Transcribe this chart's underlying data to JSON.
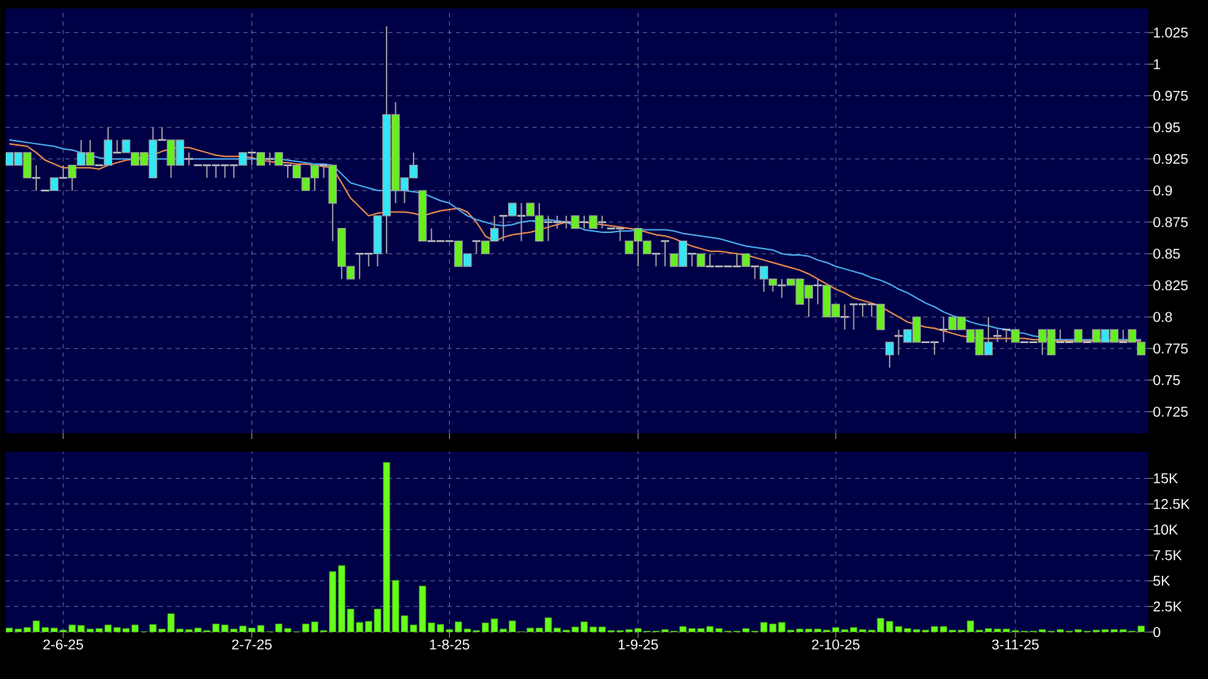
{
  "chart_data": [
    {
      "type": "candlestick",
      "tick_labels": "y",
      "grid": true,
      "categories": [
        null,
        null,
        null,
        null,
        null,
        null,
        null,
        null,
        null,
        null,
        null,
        null,
        null,
        null,
        null,
        null,
        null,
        null,
        null,
        null,
        null,
        null,
        null,
        null,
        null,
        null,
        null,
        null,
        null,
        null,
        null,
        null,
        null,
        null,
        null,
        null,
        null,
        null,
        null,
        null,
        null,
        null,
        null,
        null,
        null,
        null,
        null,
        null,
        null,
        null,
        null,
        null,
        null,
        null,
        null,
        null,
        null,
        null,
        null,
        null,
        null,
        null,
        null,
        null,
        null,
        null,
        null,
        null,
        null,
        null,
        null,
        null,
        null,
        null,
        null,
        null,
        null,
        null,
        null,
        null,
        null,
        null,
        null,
        null,
        null,
        null,
        null,
        null,
        null,
        null,
        null,
        null,
        null,
        null,
        null,
        null,
        null,
        null,
        null,
        null,
        null,
        null,
        null,
        null,
        null,
        null,
        null,
        null,
        null,
        null,
        null,
        null,
        null,
        null,
        null,
        null,
        null,
        null,
        null,
        null,
        null,
        null,
        null,
        null,
        null,
        null,
        null
      ],
      "ohlc": [
        [
          0.92,
          0.93,
          0.92,
          0.93
        ],
        [
          0.92,
          0.93,
          0.92,
          0.93
        ],
        [
          0.93,
          0.93,
          0.91,
          0.91
        ],
        [
          0.91,
          0.92,
          0.9,
          0.91
        ],
        [
          0.9,
          0.9,
          0.9,
          0.9
        ],
        [
          0.9,
          0.91,
          0.9,
          0.91
        ],
        [
          0.91,
          0.92,
          0.91,
          0.91
        ],
        [
          0.92,
          0.92,
          0.9,
          0.91
        ],
        [
          0.92,
          0.94,
          0.92,
          0.93
        ],
        [
          0.93,
          0.94,
          0.92,
          0.92
        ],
        [
          0.92,
          0.92,
          0.92,
          0.92
        ],
        [
          0.92,
          0.95,
          0.92,
          0.94
        ],
        [
          0.93,
          0.94,
          0.93,
          0.93
        ],
        [
          0.93,
          0.94,
          0.93,
          0.94
        ],
        [
          0.93,
          0.93,
          0.92,
          0.92
        ],
        [
          0.93,
          0.93,
          0.92,
          0.92
        ],
        [
          0.91,
          0.95,
          0.91,
          0.94
        ],
        [
          0.94,
          0.95,
          0.94,
          0.94
        ],
        [
          0.94,
          0.94,
          0.91,
          0.92
        ],
        [
          0.92,
          0.94,
          0.92,
          0.94
        ],
        [
          0.925,
          0.93,
          0.92,
          0.925
        ],
        [
          0.92,
          0.92,
          0.92,
          0.92
        ],
        [
          0.92,
          0.92,
          0.91,
          0.92
        ],
        [
          0.92,
          0.92,
          0.91,
          0.92
        ],
        [
          0.92,
          0.92,
          0.91,
          0.92
        ],
        [
          0.92,
          0.92,
          0.91,
          0.92
        ],
        [
          0.92,
          0.93,
          0.92,
          0.93
        ],
        [
          0.93,
          0.93,
          0.92,
          0.93
        ],
        [
          0.93,
          0.93,
          0.92,
          0.92
        ],
        [
          0.925,
          0.93,
          0.92,
          0.925
        ],
        [
          0.93,
          0.93,
          0.92,
          0.92
        ],
        [
          0.92,
          0.92,
          0.91,
          0.92
        ],
        [
          0.92,
          0.92,
          0.91,
          0.91
        ],
        [
          0.91,
          0.91,
          0.9,
          0.9
        ],
        [
          0.92,
          0.92,
          0.9,
          0.91
        ],
        [
          0.92,
          0.92,
          0.91,
          0.92
        ],
        [
          0.92,
          0.92,
          0.86,
          0.89
        ],
        [
          0.87,
          0.87,
          0.83,
          0.84
        ],
        [
          0.84,
          0.84,
          0.83,
          0.83
        ],
        [
          0.85,
          0.85,
          0.83,
          0.85
        ],
        [
          0.85,
          0.85,
          0.84,
          0.85
        ],
        [
          0.85,
          0.88,
          0.84,
          0.88
        ],
        [
          0.88,
          1.03,
          0.85,
          0.96
        ],
        [
          0.96,
          0.97,
          0.89,
          0.9
        ],
        [
          0.9,
          0.91,
          0.89,
          0.91
        ],
        [
          0.91,
          0.93,
          0.91,
          0.92
        ],
        [
          0.9,
          0.9,
          0.86,
          0.86
        ],
        [
          0.86,
          0.87,
          0.86,
          0.86
        ],
        [
          0.86,
          0.86,
          0.86,
          0.86
        ],
        [
          0.86,
          0.86,
          0.86,
          0.86
        ],
        [
          0.86,
          0.86,
          0.84,
          0.84
        ],
        [
          0.84,
          0.85,
          0.84,
          0.85
        ],
        [
          0.86,
          0.86,
          0.85,
          0.86
        ],
        [
          0.86,
          0.86,
          0.85,
          0.85
        ],
        [
          0.86,
          0.88,
          0.86,
          0.87
        ],
        [
          0.88,
          0.88,
          0.86,
          0.88
        ],
        [
          0.88,
          0.89,
          0.88,
          0.89
        ],
        [
          0.88,
          0.89,
          0.86,
          0.88
        ],
        [
          0.89,
          0.89,
          0.88,
          0.88
        ],
        [
          0.88,
          0.89,
          0.86,
          0.86
        ],
        [
          0.875,
          0.88,
          0.86,
          0.875
        ],
        [
          0.875,
          0.88,
          0.87,
          0.875
        ],
        [
          0.875,
          0.88,
          0.87,
          0.875
        ],
        [
          0.88,
          0.88,
          0.87,
          0.87
        ],
        [
          0.875,
          0.88,
          0.87,
          0.875
        ],
        [
          0.88,
          0.88,
          0.87,
          0.87
        ],
        [
          0.875,
          0.88,
          0.87,
          0.875
        ],
        [
          0.87,
          0.87,
          0.87,
          0.87
        ],
        [
          0.87,
          0.87,
          0.86,
          0.87
        ],
        [
          0.86,
          0.86,
          0.85,
          0.85
        ],
        [
          0.87,
          0.87,
          0.84,
          0.86
        ],
        [
          0.86,
          0.86,
          0.85,
          0.85
        ],
        [
          0.85,
          0.85,
          0.84,
          0.85
        ],
        [
          0.86,
          0.86,
          0.84,
          0.86
        ],
        [
          0.85,
          0.85,
          0.84,
          0.84
        ],
        [
          0.84,
          0.86,
          0.84,
          0.86
        ],
        [
          0.85,
          0.85,
          0.84,
          0.85
        ],
        [
          0.85,
          0.85,
          0.84,
          0.84
        ],
        [
          0.84,
          0.85,
          0.84,
          0.84
        ],
        [
          0.84,
          0.84,
          0.84,
          0.84
        ],
        [
          0.84,
          0.84,
          0.84,
          0.84
        ],
        [
          0.84,
          0.85,
          0.84,
          0.84
        ],
        [
          0.85,
          0.85,
          0.84,
          0.84
        ],
        [
          0.84,
          0.84,
          0.83,
          0.84
        ],
        [
          0.83,
          0.84,
          0.82,
          0.84
        ],
        [
          0.83,
          0.83,
          0.82,
          0.825
        ],
        [
          0.825,
          0.83,
          0.815,
          0.825
        ],
        [
          0.83,
          0.83,
          0.825,
          0.825
        ],
        [
          0.83,
          0.83,
          0.81,
          0.81
        ],
        [
          0.825,
          0.825,
          0.8,
          0.815
        ],
        [
          0.825,
          0.83,
          0.81,
          0.825
        ],
        [
          0.825,
          0.825,
          0.8,
          0.8
        ],
        [
          0.81,
          0.81,
          0.8,
          0.8
        ],
        [
          0.8,
          0.81,
          0.79,
          0.8
        ],
        [
          0.81,
          0.81,
          0.79,
          0.81
        ],
        [
          0.81,
          0.81,
          0.8,
          0.81
        ],
        [
          0.81,
          0.81,
          0.8,
          0.81
        ],
        [
          0.81,
          0.81,
          0.79,
          0.79
        ],
        [
          0.77,
          0.78,
          0.76,
          0.78
        ],
        [
          0.785,
          0.79,
          0.77,
          0.785
        ],
        [
          0.78,
          0.79,
          0.78,
          0.79
        ],
        [
          0.8,
          0.8,
          0.78,
          0.78
        ],
        [
          0.78,
          0.78,
          0.78,
          0.78
        ],
        [
          0.78,
          0.78,
          0.77,
          0.78
        ],
        [
          0.79,
          0.8,
          0.78,
          0.79
        ],
        [
          0.8,
          0.8,
          0.79,
          0.79
        ],
        [
          0.8,
          0.8,
          0.79,
          0.79
        ],
        [
          0.79,
          0.79,
          0.78,
          0.78
        ],
        [
          0.79,
          0.79,
          0.77,
          0.77
        ],
        [
          0.77,
          0.8,
          0.77,
          0.78
        ],
        [
          0.785,
          0.79,
          0.78,
          0.785
        ],
        [
          0.79,
          0.79,
          0.78,
          0.79
        ],
        [
          0.79,
          0.79,
          0.78,
          0.78
        ],
        [
          0.78,
          0.78,
          0.78,
          0.78
        ],
        [
          0.78,
          0.78,
          0.78,
          0.78
        ],
        [
          0.79,
          0.79,
          0.77,
          0.78
        ],
        [
          0.79,
          0.79,
          0.77,
          0.77
        ],
        [
          0.78,
          0.79,
          0.78,
          0.78
        ],
        [
          0.78,
          0.78,
          0.78,
          0.78
        ],
        [
          0.79,
          0.79,
          0.78,
          0.78
        ],
        [
          0.78,
          0.78,
          0.78,
          0.78
        ],
        [
          0.79,
          0.79,
          0.78,
          0.78
        ],
        [
          0.78,
          0.79,
          0.78,
          0.79
        ],
        [
          0.79,
          0.79,
          0.78,
          0.78
        ],
        [
          0.78,
          0.79,
          0.78,
          0.78
        ],
        [
          0.79,
          0.79,
          0.78,
          0.78
        ],
        [
          0.78,
          0.78,
          0.77,
          0.77
        ]
      ],
      "colors": [
        "#33e6f5",
        "#33e6f5",
        "#66ee22",
        "#c0c0c0",
        "#c0c0c0",
        "#33e6f5",
        "#c0c0c0",
        "#66ee22",
        "#33e6f5",
        "#66ee22",
        "#c0c0c0",
        "#33e6f5",
        "#c0c0c0",
        "#33e6f5",
        "#66ee22",
        "#66ee22",
        "#33e6f5",
        "#c0c0c0",
        "#66ee22",
        "#33e6f5",
        "#c0c0c0",
        "#c0c0c0",
        "#c0c0c0",
        "#c0c0c0",
        "#c0c0c0",
        "#c0c0c0",
        "#33e6f5",
        "#c0c0c0",
        "#66ee22",
        "#c0c0c0",
        "#66ee22",
        "#c0c0c0",
        "#66ee22",
        "#66ee22",
        "#66ee22",
        "#c0c0c0",
        "#66ee22",
        "#66ee22",
        "#66ee22",
        "#c0c0c0",
        "#c0c0c0",
        "#33e6f5",
        "#33e6f5",
        "#66ee22",
        "#33e6f5",
        "#33e6f5",
        "#66ee22",
        "#c0c0c0",
        "#c0c0c0",
        "#c0c0c0",
        "#66ee22",
        "#33e6f5",
        "#c0c0c0",
        "#66ee22",
        "#33e6f5",
        "#c0c0c0",
        "#33e6f5",
        "#c0c0c0",
        "#66ee22",
        "#66ee22",
        "#c0c0c0",
        "#c0c0c0",
        "#c0c0c0",
        "#66ee22",
        "#c0c0c0",
        "#66ee22",
        "#c0c0c0",
        "#c0c0c0",
        "#c0c0c0",
        "#66ee22",
        "#66ee22",
        "#66ee22",
        "#c0c0c0",
        "#c0c0c0",
        "#66ee22",
        "#33e6f5",
        "#c0c0c0",
        "#66ee22",
        "#c0c0c0",
        "#c0c0c0",
        "#c0c0c0",
        "#c0c0c0",
        "#66ee22",
        "#c0c0c0",
        "#33e6f5",
        "#66ee22",
        "#c0c0c0",
        "#66ee22",
        "#66ee22",
        "#66ee22",
        "#c0c0c0",
        "#66ee22",
        "#66ee22",
        "#c0c0c0",
        "#c0c0c0",
        "#c0c0c0",
        "#c0c0c0",
        "#66ee22",
        "#33e6f5",
        "#c0c0c0",
        "#33e6f5",
        "#66ee22",
        "#c0c0c0",
        "#c0c0c0",
        "#c0c0c0",
        "#66ee22",
        "#66ee22",
        "#66ee22",
        "#66ee22",
        "#33e6f5",
        "#c0c0c0",
        "#c0c0c0",
        "#66ee22",
        "#c0c0c0",
        "#c0c0c0",
        "#66ee22",
        "#66ee22",
        "#c0c0c0",
        "#c0c0c0",
        "#66ee22",
        "#c0c0c0",
        "#66ee22",
        "#33e6f5",
        "#66ee22",
        "#c0c0c0",
        "#66ee22",
        "#66ee22"
      ],
      "series": [
        {
          "type": "line",
          "color": "#e8894a",
          "values": [
            0.937,
            0.936,
            0.935,
            0.93,
            0.924,
            0.921,
            0.918,
            0.918,
            0.918,
            0.918,
            0.917,
            0.92,
            0.922,
            0.924,
            0.925,
            0.927,
            0.928,
            0.931,
            0.933,
            0.934,
            0.934,
            0.932,
            0.93,
            0.928,
            0.927,
            0.927,
            0.927,
            0.926,
            0.924,
            0.923,
            0.922,
            0.922,
            0.921,
            0.921,
            0.92,
            0.919,
            0.918,
            0.906,
            0.894,
            0.887,
            0.88,
            0.882,
            0.883,
            0.883,
            0.883,
            0.882,
            0.88,
            0.882,
            0.884,
            0.885,
            0.886,
            0.883,
            0.875,
            0.864,
            0.86,
            0.863,
            0.865,
            0.866,
            0.867,
            0.869,
            0.871,
            0.873,
            0.875,
            0.875,
            0.875,
            0.874,
            0.873,
            0.872,
            0.871,
            0.87,
            0.869,
            0.867,
            0.865,
            0.864,
            0.862,
            0.859,
            0.856,
            0.854,
            0.852,
            0.852,
            0.851,
            0.85,
            0.849,
            0.847,
            0.845,
            0.843,
            0.841,
            0.839,
            0.837,
            0.834,
            0.83,
            0.826,
            0.822,
            0.819,
            0.815,
            0.813,
            0.811,
            0.808,
            0.804,
            0.8,
            0.796,
            0.794,
            0.792,
            0.791,
            0.789,
            0.787,
            0.785,
            0.784,
            0.783,
            0.783,
            0.783,
            0.783,
            0.783,
            0.783,
            0.782,
            0.782,
            0.781,
            0.781,
            0.781,
            0.781,
            0.781,
            0.781,
            0.781,
            0.781,
            0.781,
            0.781,
            0.781
          ]
        },
        {
          "type": "line",
          "color": "#4aa8ec",
          "values": [
            0.94,
            0.939,
            0.938,
            0.937,
            0.936,
            0.935,
            0.933,
            0.932,
            0.93,
            0.928,
            0.926,
            0.925,
            0.925,
            0.925,
            0.925,
            0.925,
            0.925,
            0.925,
            0.925,
            0.925,
            0.925,
            0.925,
            0.925,
            0.925,
            0.925,
            0.925,
            0.925,
            0.925,
            0.925,
            0.925,
            0.925,
            0.924,
            0.923,
            0.922,
            0.921,
            0.921,
            0.92,
            0.913,
            0.906,
            0.904,
            0.902,
            0.9,
            0.9,
            0.9,
            0.9,
            0.899,
            0.898,
            0.895,
            0.892,
            0.89,
            0.885,
            0.88,
            0.877,
            0.875,
            0.873,
            0.872,
            0.873,
            0.875,
            0.876,
            0.876,
            0.877,
            0.876,
            0.875,
            0.872,
            0.869,
            0.868,
            0.867,
            0.867,
            0.868,
            0.868,
            0.869,
            0.869,
            0.869,
            0.869,
            0.868,
            0.866,
            0.865,
            0.864,
            0.863,
            0.862,
            0.86,
            0.858,
            0.856,
            0.855,
            0.854,
            0.853,
            0.85,
            0.849,
            0.849,
            0.848,
            0.845,
            0.843,
            0.84,
            0.838,
            0.836,
            0.834,
            0.831,
            0.829,
            0.826,
            0.822,
            0.819,
            0.815,
            0.811,
            0.808,
            0.804,
            0.801,
            0.799,
            0.796,
            0.794,
            0.793,
            0.791,
            0.79,
            0.788,
            0.787,
            0.785,
            0.784,
            0.782,
            0.782,
            0.782,
            0.782,
            0.782,
            0.782,
            0.782,
            0.782,
            0.782,
            0.782,
            0.782
          ]
        }
      ],
      "ylim": [
        0.708,
        1.044
      ],
      "yticks": [
        0.725,
        0.75,
        0.775,
        0.8,
        0.825,
        0.85,
        0.875,
        0.9,
        0.925,
        0.95,
        0.975,
        1,
        1.025
      ]
    },
    {
      "type": "bar",
      "grid": true,
      "color": "#66ff1a",
      "categories": [
        null,
        null,
        null,
        null,
        null,
        null,
        "2-6-25",
        null,
        null,
        null,
        null,
        null,
        null,
        null,
        null,
        null,
        null,
        null,
        null,
        null,
        null,
        null,
        null,
        null,
        null,
        null,
        null,
        "2-7-25",
        null,
        null,
        null,
        null,
        null,
        null,
        null,
        null,
        null,
        null,
        null,
        null,
        null,
        null,
        null,
        null,
        null,
        null,
        null,
        null,
        null,
        "1-8-25",
        null,
        null,
        null,
        null,
        null,
        null,
        null,
        null,
        null,
        null,
        null,
        null,
        null,
        null,
        null,
        null,
        null,
        null,
        null,
        null,
        "1-9-25",
        null,
        null,
        null,
        null,
        null,
        null,
        null,
        null,
        null,
        null,
        null,
        null,
        null,
        null,
        null,
        null,
        null,
        null,
        null,
        null,
        null,
        "2-10-25",
        null,
        null,
        null,
        null,
        null,
        null,
        null,
        null,
        null,
        null,
        null,
        null,
        null,
        null,
        null,
        null,
        null,
        null,
        null,
        "3-11-25",
        null,
        null,
        null,
        null,
        null,
        null,
        null,
        null,
        null,
        null,
        null,
        null,
        null,
        null
      ],
      "values": [
        400,
        300,
        450,
        1100,
        450,
        400,
        200,
        700,
        650,
        300,
        350,
        700,
        450,
        350,
        700,
        50,
        750,
        300,
        1800,
        300,
        250,
        400,
        150,
        800,
        700,
        300,
        600,
        400,
        650,
        50,
        800,
        350,
        50,
        800,
        1000,
        150,
        5900,
        6500,
        2250,
        950,
        1050,
        2250,
        16550,
        5050,
        1600,
        700,
        4500,
        900,
        750,
        250,
        1000,
        300,
        150,
        900,
        1300,
        300,
        1100,
        50,
        400,
        400,
        1400,
        400,
        200,
        500,
        1000,
        500,
        500,
        150,
        150,
        250,
        350,
        100,
        100,
        250,
        100,
        550,
        350,
        350,
        550,
        350,
        100,
        100,
        350,
        100,
        950,
        800,
        950,
        200,
        300,
        300,
        300,
        200,
        450,
        250,
        450,
        250,
        200,
        1350,
        1050,
        550,
        350,
        250,
        200,
        550,
        550,
        200,
        200,
        1100,
        200,
        350,
        300,
        300,
        150,
        100,
        100,
        250,
        100,
        250,
        100,
        250,
        100,
        200,
        250,
        250,
        250,
        100,
        600
      ],
      "ylim": [
        0,
        17600
      ],
      "yticks": [
        0,
        {
          "value": 2500,
          "label": "2.5K"
        },
        {
          "value": 5000,
          "label": "5K"
        },
        {
          "value": 7500,
          "label": "7.5K"
        },
        {
          "value": 10000,
          "label": "10K"
        },
        {
          "value": 12500,
          "label": "12.5K"
        },
        {
          "value": 15000,
          "label": "15K"
        }
      ]
    }
  ]
}
